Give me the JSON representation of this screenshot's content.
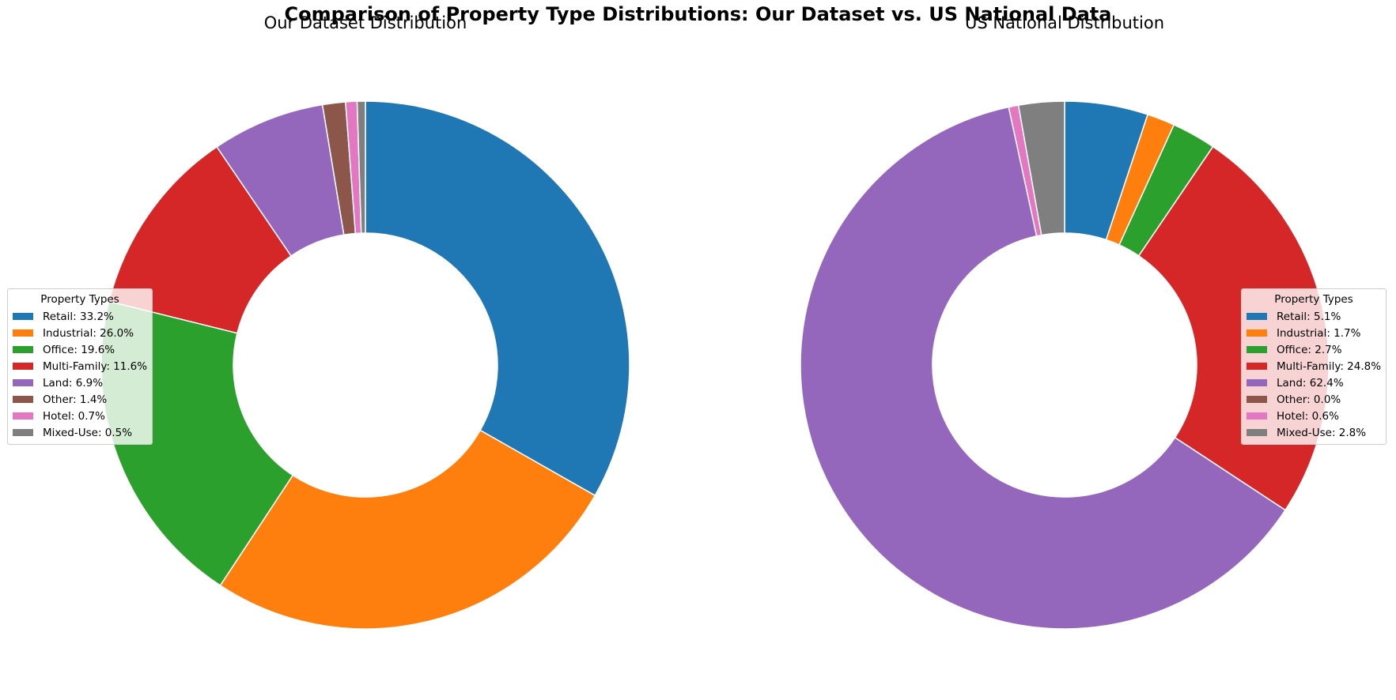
{
  "suptitle": "Comparison of Property Type Distributions: Our Dataset vs. US National Data",
  "legend_title": "Property Types",
  "colors": [
    "#1f77b4",
    "#ff7f0e",
    "#2ca02c",
    "#d62728",
    "#9467bd",
    "#8c564b",
    "#e377c2",
    "#7f7f7f"
  ],
  "chart_data": [
    {
      "type": "pie",
      "style": "donut",
      "title": "Our Dataset Distribution",
      "categories": [
        "Retail",
        "Industrial",
        "Office",
        "Multi-Family",
        "Land",
        "Other",
        "Hotel",
        "Mixed-Use"
      ],
      "values": [
        33.2,
        26.0,
        19.6,
        11.6,
        6.9,
        1.4,
        0.7,
        0.5
      ],
      "legend_labels": [
        "Retail: 33.2%",
        "Industrial: 26.0%",
        "Office: 19.6%",
        "Multi-Family: 11.6%",
        "Land: 6.9%",
        "Other: 1.4%",
        "Hotel: 0.7%",
        "Mixed-Use: 0.5%"
      ],
      "legend_placement": "center-left"
    },
    {
      "type": "pie",
      "style": "donut",
      "title": "US National Distribution",
      "categories": [
        "Retail",
        "Industrial",
        "Office",
        "Multi-Family",
        "Land",
        "Other",
        "Hotel",
        "Mixed-Use"
      ],
      "values": [
        5.1,
        1.7,
        2.7,
        24.8,
        62.4,
        0.0,
        0.6,
        2.8
      ],
      "legend_labels": [
        "Retail: 5.1%",
        "Industrial: 1.7%",
        "Office: 2.7%",
        "Multi-Family: 24.8%",
        "Land: 62.4%",
        "Other: 0.0%",
        "Hotel: 0.6%",
        "Mixed-Use: 2.8%"
      ],
      "legend_placement": "center-right"
    }
  ]
}
